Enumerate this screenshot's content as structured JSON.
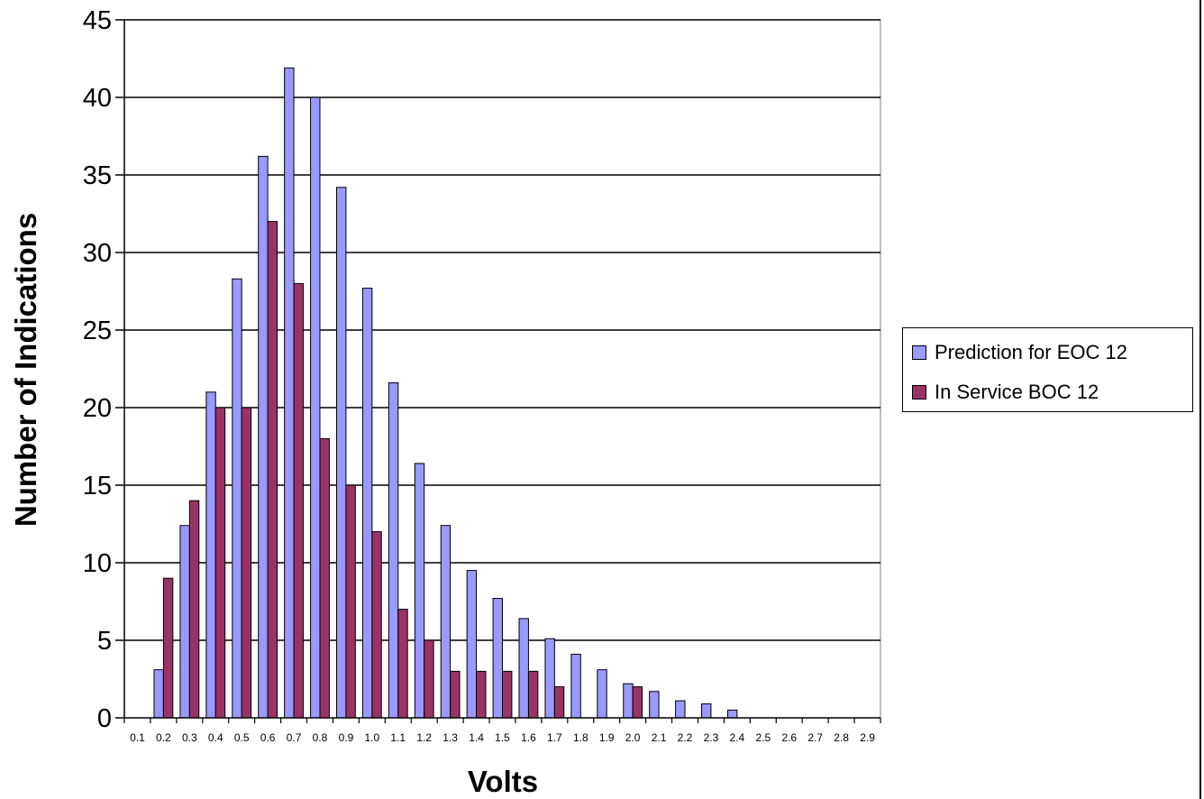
{
  "chart_data": {
    "type": "bar",
    "title": "",
    "xlabel": "Volts",
    "ylabel": "Number of Indications",
    "ylim": [
      0,
      45
    ],
    "yticks": [
      "0",
      "5",
      "10",
      "15",
      "20",
      "25",
      "30",
      "35",
      "40",
      "45"
    ],
    "categories": [
      "0.1",
      "0.2",
      "0.3",
      "0.4",
      "0.5",
      "0.6",
      "0.7",
      "0.8",
      "0.9",
      "1.0",
      "1.1",
      "1.2",
      "1.3",
      "1.4",
      "1.5",
      "1.6",
      "1.7",
      "1.8",
      "1.9",
      "2.0",
      "2.1",
      "2.2",
      "2.3",
      "2.4",
      "2.5",
      "2.6",
      "2.7",
      "2.8",
      "2.9"
    ],
    "grid": true,
    "legend_position": "right",
    "series": [
      {
        "name": "Prediction for EOC 12",
        "color": "#9999FF",
        "values": [
          0,
          3.1,
          12.4,
          21,
          28.3,
          36.2,
          41.9,
          40,
          34.2,
          27.7,
          21.6,
          16.4,
          12.4,
          9.5,
          7.7,
          6.4,
          5.1,
          4.1,
          3.1,
          2.2,
          1.7,
          1.1,
          0.9,
          0.5,
          0,
          0,
          0,
          0,
          0
        ]
      },
      {
        "name": "In Service BOC 12",
        "color": "#993366",
        "values": [
          0,
          9,
          14,
          20,
          20,
          32,
          28,
          18,
          15,
          12,
          7,
          5,
          3,
          3,
          3,
          3,
          2,
          0,
          0,
          2,
          0,
          0,
          0,
          0,
          0,
          0,
          0,
          0,
          0
        ]
      }
    ]
  }
}
